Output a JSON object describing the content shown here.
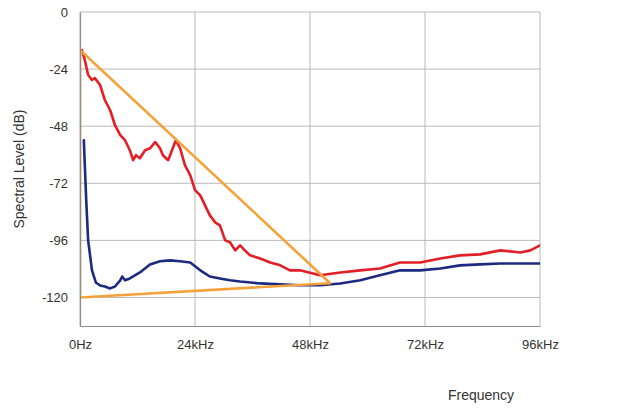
{
  "chart_data": {
    "type": "line",
    "x_label": "Frequency",
    "y_label": "Spectral Level (dB)",
    "xlim": [
      0,
      96
    ],
    "ylim": [
      -132,
      0
    ],
    "xticks": [
      {
        "value": 0,
        "label": "0Hz"
      },
      {
        "value": 24,
        "label": "24kHz"
      },
      {
        "value": 48,
        "label": "48kHz"
      },
      {
        "value": 72,
        "label": "72kHz"
      },
      {
        "value": 96,
        "label": "96kHz"
      }
    ],
    "yticks": [
      -120,
      -96,
      -72,
      -48,
      -24,
      0
    ],
    "grid": true,
    "series": [
      {
        "color": "#e41e26",
        "x": [
          0.4,
          1.0,
          1.7,
          2.5,
          3.1,
          4.2,
          5.2,
          6.3,
          7.3,
          8.4,
          9.4,
          10.4,
          11.1,
          11.7,
          12.5,
          13.6,
          14.6,
          15.7,
          16.7,
          17.3,
          18.4,
          19.2,
          20.0,
          20.9,
          21.9,
          23.0,
          24.0,
          25.1,
          26.1,
          27.1,
          28.2,
          29.2,
          30.3,
          31.3,
          32.4,
          33.4,
          34.4,
          35.5,
          37.6,
          39.7,
          41.8,
          43.8,
          45.9,
          50.1,
          54.3,
          58.5,
          62.6,
          66.8,
          71.0,
          75.2,
          79.3,
          83.5,
          87.7,
          91.9,
          94.0,
          96.0
        ],
        "values": [
          -16.0,
          -20.2,
          -26.5,
          -28.6,
          -27.8,
          -30.7,
          -37.1,
          -41.3,
          -47.6,
          -51.8,
          -53.9,
          -58.1,
          -62.3,
          -60.2,
          -61.5,
          -58.1,
          -57.3,
          -54.7,
          -57.3,
          -60.2,
          -62.3,
          -58.1,
          -53.9,
          -57.3,
          -64.4,
          -68.6,
          -74.9,
          -77.1,
          -81.3,
          -85.5,
          -88.4,
          -89.7,
          -96.0,
          -96.8,
          -100.2,
          -98.1,
          -100.2,
          -102.3,
          -103.6,
          -105.3,
          -106.5,
          -108.6,
          -108.6,
          -110.7,
          -109.5,
          -108.6,
          -107.8,
          -105.3,
          -105.3,
          -103.6,
          -102.3,
          -101.9,
          -100.2,
          -101.1,
          -100.2,
          -98.1
        ]
      },
      {
        "color": "#1c2a80",
        "x": [
          0.8,
          1.3,
          1.7,
          2.5,
          3.3,
          4.2,
          5.2,
          6.3,
          7.3,
          8.4,
          8.8,
          9.4,
          10.4,
          12.5,
          14.6,
          16.7,
          18.8,
          20.9,
          23.0,
          25.1,
          27.1,
          29.2,
          31.3,
          33.4,
          37.6,
          41.8,
          45.9,
          50.1,
          54.3,
          58.5,
          62.6,
          66.8,
          71.0,
          75.2,
          79.3,
          83.5,
          87.7,
          96.0
        ],
        "values": [
          -53.9,
          -79.2,
          -96.0,
          -108.6,
          -113.7,
          -115.0,
          -115.4,
          -116.2,
          -115.4,
          -112.8,
          -111.2,
          -112.8,
          -112.0,
          -109.5,
          -106.1,
          -104.8,
          -104.4,
          -104.8,
          -105.3,
          -108.6,
          -111.2,
          -112.0,
          -112.8,
          -113.3,
          -114.1,
          -114.5,
          -114.9,
          -114.9,
          -114.1,
          -112.8,
          -110.7,
          -108.6,
          -108.6,
          -107.8,
          -106.5,
          -106.1,
          -105.7,
          -105.7
        ]
      },
      {
        "color": "#f5a23a",
        "x": [
          0,
          52.2,
          0,
          0
        ],
        "values": [
          -16.0,
          -114.0,
          -120.0,
          -16.0
        ]
      }
    ]
  }
}
